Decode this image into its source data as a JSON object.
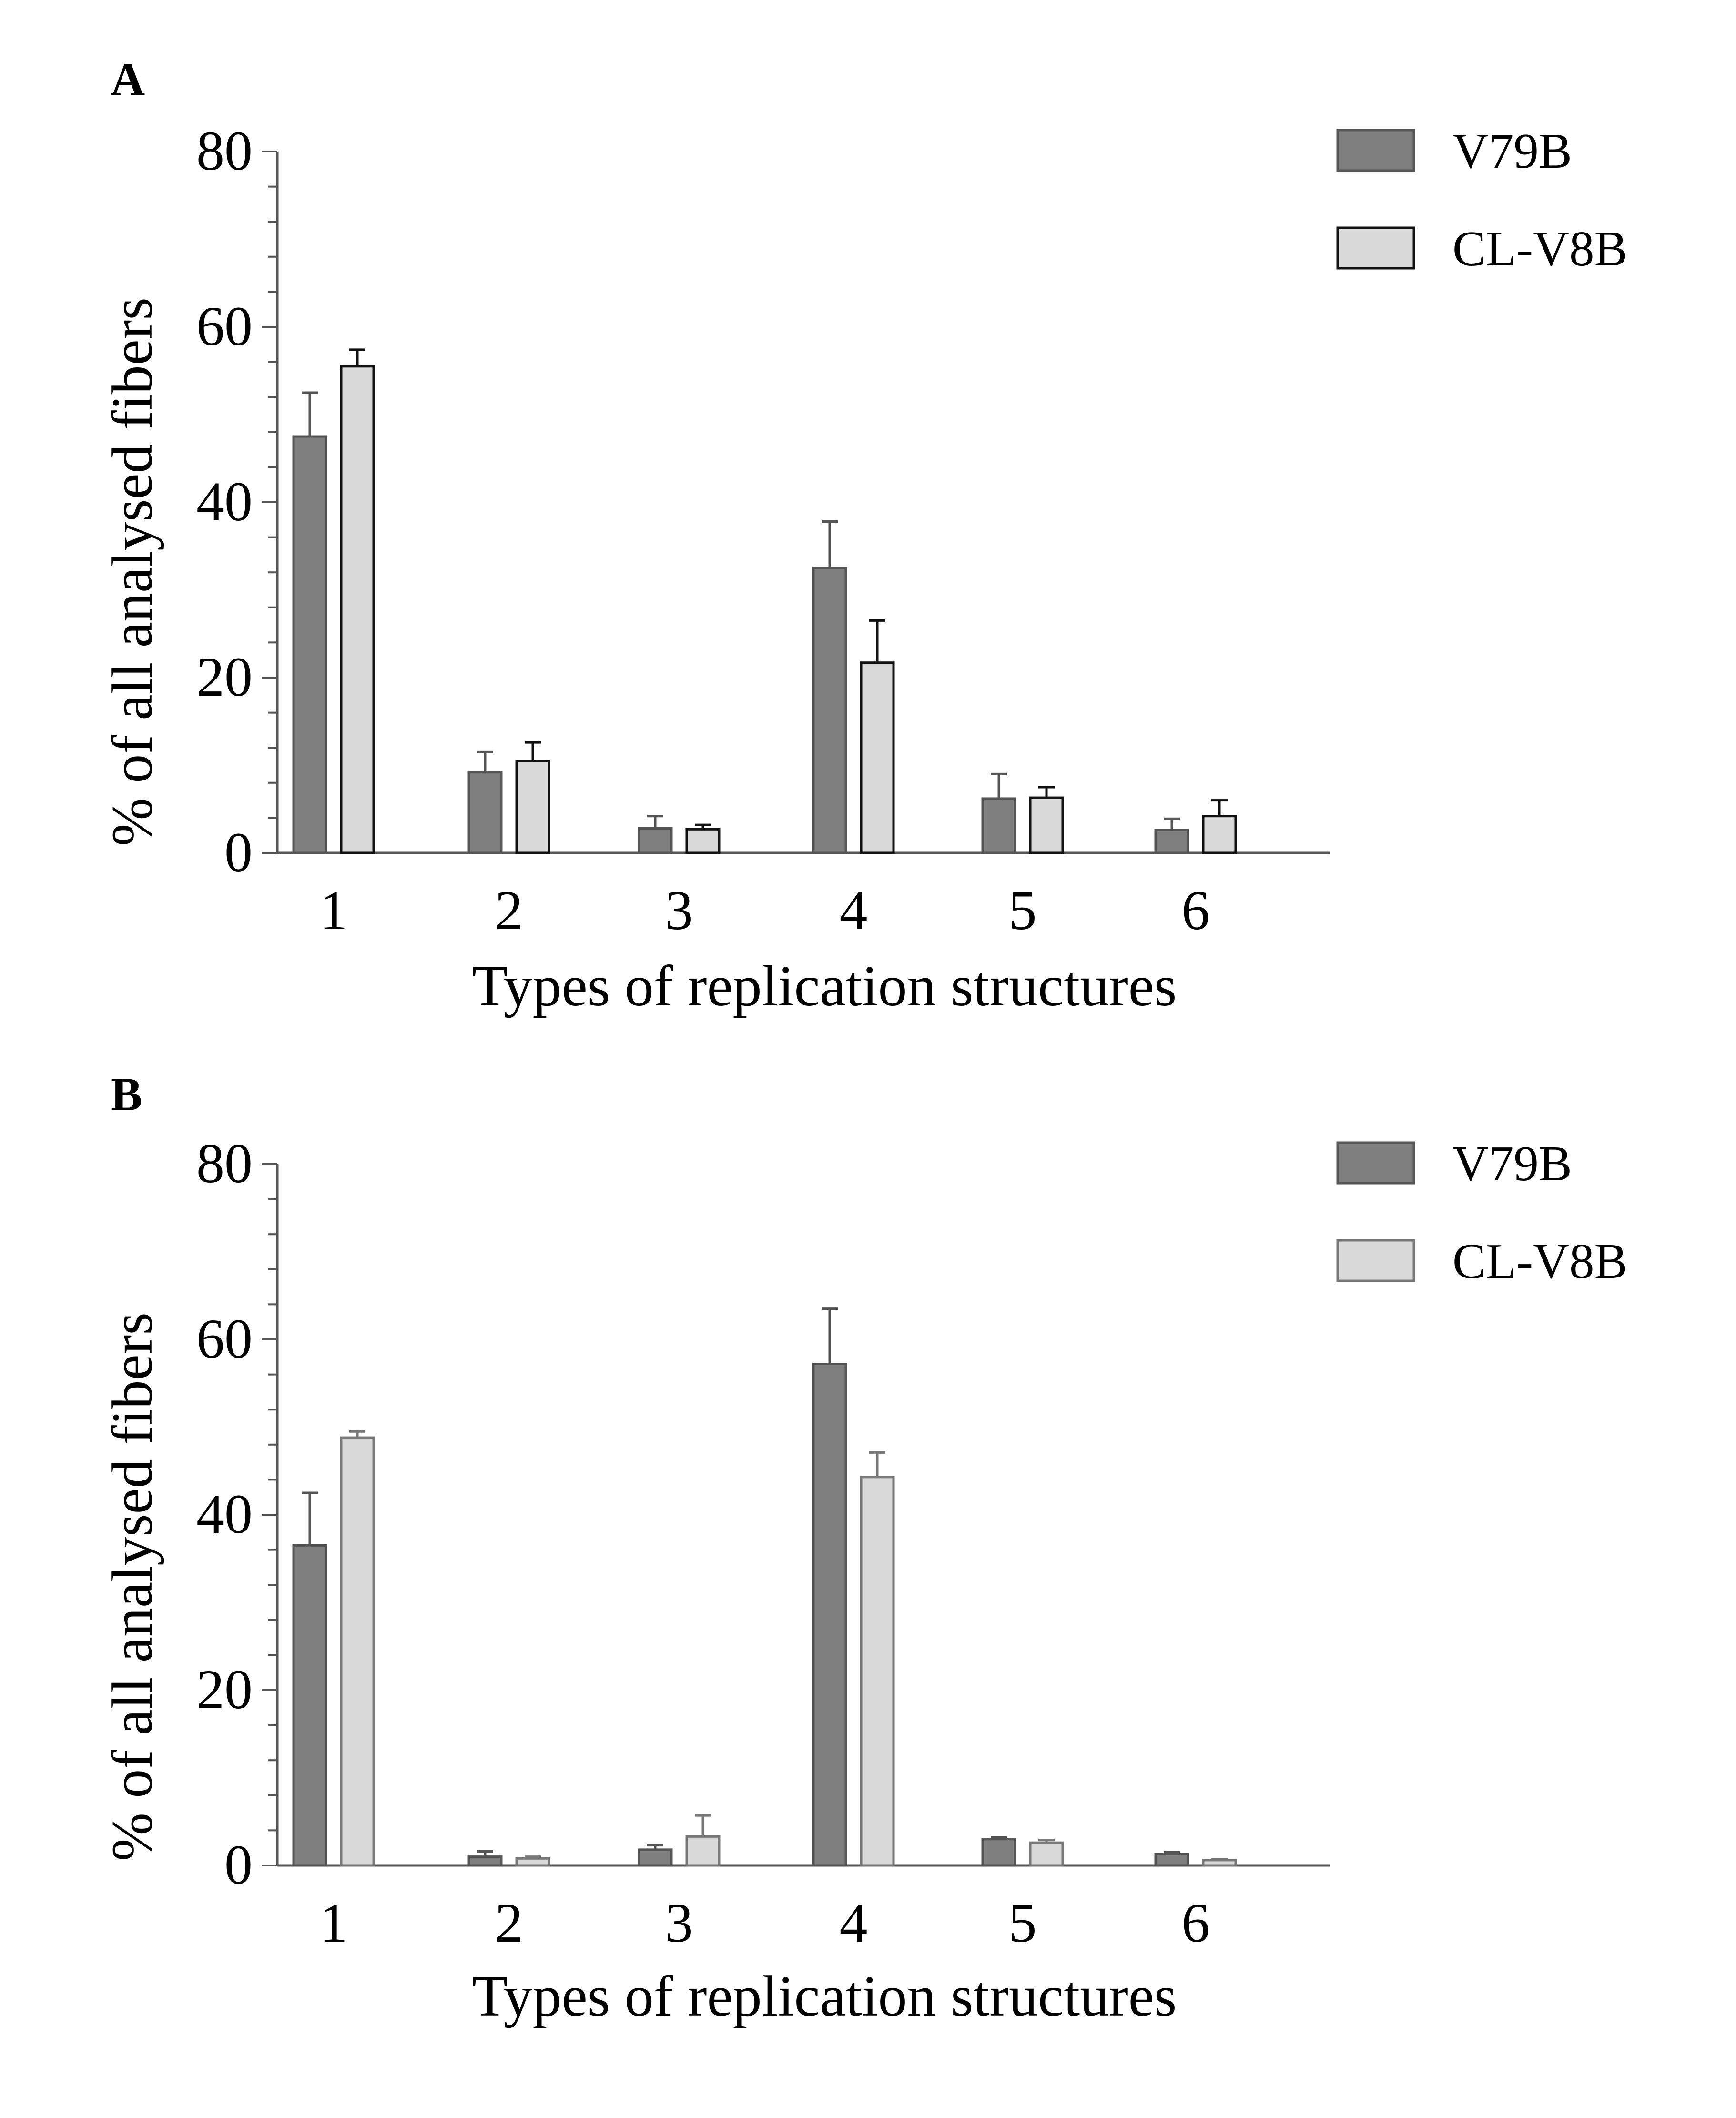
{
  "chart_data": [
    {
      "type": "bar",
      "panel_label": "A",
      "categories": [
        "1",
        "2",
        "3",
        "4",
        "5",
        "6"
      ],
      "series": [
        {
          "name": "V79B",
          "color": "#7f7f7f",
          "edge": "#555555",
          "values": [
            47.5,
            9.2,
            2.8,
            32.5,
            6.2,
            2.6
          ],
          "errors": [
            5.0,
            2.3,
            1.4,
            5.3,
            2.8,
            1.3
          ]
        },
        {
          "name": "CL-V8B",
          "color": "#d9d9d9",
          "edge": "#111111",
          "values": [
            55.5,
            10.5,
            2.7,
            21.7,
            6.3,
            4.2
          ],
          "errors": [
            1.9,
            2.1,
            0.5,
            4.8,
            1.2,
            1.8
          ]
        }
      ],
      "xlabel": "Types of replication structures",
      "ylabel": "% of all analysed fibers",
      "ylim": [
        0,
        80
      ],
      "yticks": [
        "0",
        "20",
        "40",
        "60",
        "80"
      ],
      "legend_position": "top-right",
      "grid": false
    },
    {
      "type": "bar",
      "panel_label": "B",
      "categories": [
        "1",
        "2",
        "3",
        "4",
        "5",
        "6"
      ],
      "series": [
        {
          "name": "V79B",
          "color": "#7f7f7f",
          "edge": "#555555",
          "values": [
            36.5,
            1.0,
            1.8,
            57.2,
            3.0,
            1.3
          ],
          "errors": [
            6.0,
            0.6,
            0.5,
            6.3,
            0.2,
            0.2
          ]
        },
        {
          "name": "CL-V8B",
          "color": "#d9d9d9",
          "edge": "#777777",
          "values": [
            48.8,
            0.8,
            3.3,
            44.3,
            2.6,
            0.6
          ],
          "errors": [
            0.7,
            0.2,
            2.4,
            2.8,
            0.3,
            0.1
          ]
        }
      ],
      "xlabel": "Types of replication structures",
      "ylabel": "% of all analysed fibers",
      "ylim": [
        0,
        80
      ],
      "yticks": [
        "0",
        "20",
        "40",
        "60",
        "80"
      ],
      "legend_position": "top-right",
      "grid": false
    }
  ]
}
